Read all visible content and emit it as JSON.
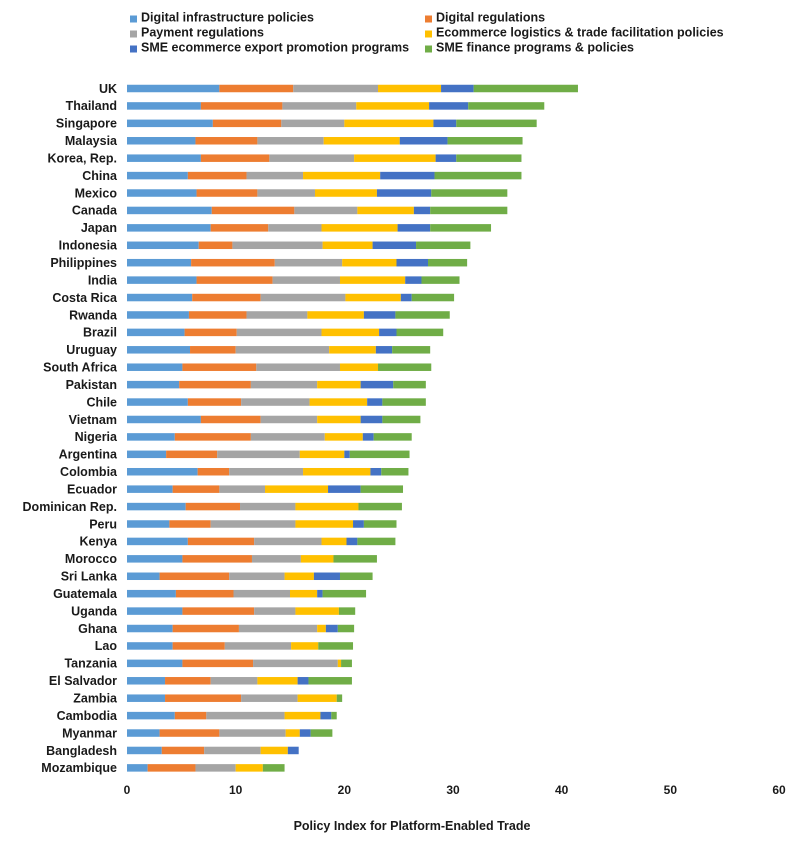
{
  "chart_data": {
    "type": "bar",
    "orientation": "horizontal",
    "stacked": true,
    "title": "",
    "xlabel": "Policy Index for Platform-Enabled Trade",
    "ylabel": "",
    "xlim": [
      0,
      60
    ],
    "xticks": [
      0,
      10,
      20,
      30,
      40,
      50,
      60
    ],
    "grid": false,
    "legend": "top",
    "categories": [
      "UK",
      "Thailand",
      "Singapore",
      "Malaysia",
      "Korea, Rep.",
      "China",
      "Mexico",
      "Canada",
      "Japan",
      "Indonesia",
      "Philippines",
      "India",
      "Costa Rica",
      "Rwanda",
      "Brazil",
      "Uruguay",
      "South Africa",
      "Pakistan",
      "Chile",
      "Vietnam",
      "Nigeria",
      "Argentina",
      "Colombia",
      "Ecuador",
      "Dominican Rep.",
      "Peru",
      "Kenya",
      "Morocco",
      "Sri Lanka",
      "Guatemala",
      "Uganda",
      "Ghana",
      "Lao",
      "Tanzania",
      "El Salvador",
      "Zambia",
      "Cambodia",
      "Myanmar",
      "Bangladesh",
      "Mozambique"
    ],
    "series": [
      {
        "name": "Digital infrastructure policies",
        "color": "#5b9bd5",
        "values": [
          8.5,
          6.8,
          7.9,
          6.3,
          6.8,
          5.6,
          6.4,
          7.8,
          7.7,
          6.6,
          5.9,
          6.4,
          6.0,
          5.7,
          5.3,
          5.8,
          5.1,
          4.8,
          5.6,
          6.8,
          4.4,
          3.6,
          6.5,
          4.2,
          5.4,
          3.9,
          5.6,
          5.1,
          3.0,
          4.5,
          5.1,
          4.2,
          4.2,
          5.1,
          3.5,
          3.5,
          4.4,
          3.0,
          3.2,
          1.9
        ]
      },
      {
        "name": "Digital regulations",
        "color": "#ed7d31",
        "values": [
          6.8,
          7.5,
          6.3,
          5.7,
          6.3,
          5.4,
          5.6,
          7.6,
          5.3,
          3.1,
          7.7,
          7.0,
          6.3,
          5.3,
          4.8,
          4.2,
          6.8,
          6.6,
          4.9,
          5.5,
          7.0,
          4.7,
          2.9,
          4.3,
          5.0,
          3.8,
          6.1,
          6.4,
          6.4,
          5.3,
          6.6,
          6.1,
          4.8,
          6.5,
          4.2,
          7.0,
          2.9,
          5.5,
          3.9,
          4.4
        ]
      },
      {
        "name": "Payment regulations",
        "color": "#a5a5a5",
        "values": [
          7.8,
          6.8,
          5.8,
          6.1,
          7.8,
          5.2,
          5.3,
          5.8,
          4.9,
          8.3,
          6.2,
          6.2,
          7.8,
          5.6,
          7.8,
          8.6,
          7.7,
          6.1,
          6.3,
          5.2,
          6.8,
          7.6,
          6.8,
          4.2,
          5.1,
          7.8,
          6.2,
          4.5,
          5.1,
          5.2,
          3.8,
          7.2,
          6.1,
          7.8,
          4.3,
          5.2,
          7.2,
          6.1,
          5.2,
          3.7
        ]
      },
      {
        "name": "Ecommerce logistics & trade facilitation policies",
        "color": "#ffc000",
        "values": [
          5.8,
          6.7,
          8.2,
          7.0,
          7.5,
          7.1,
          5.7,
          5.2,
          7.0,
          4.6,
          5.0,
          6.0,
          5.1,
          5.2,
          5.3,
          4.3,
          3.5,
          4.0,
          5.3,
          4.0,
          3.5,
          4.1,
          6.2,
          5.8,
          5.8,
          5.3,
          2.3,
          3.0,
          2.7,
          2.5,
          4.0,
          0.8,
          2.5,
          0.3,
          3.7,
          3.6,
          3.3,
          1.3,
          2.5,
          2.5
        ]
      },
      {
        "name": "SME ecommerce export promotion programs",
        "color": "#4472c4",
        "values": [
          3.0,
          3.6,
          2.1,
          4.4,
          1.9,
          5.0,
          5.0,
          1.5,
          3.0,
          4.0,
          2.9,
          1.5,
          1.0,
          2.9,
          1.6,
          1.5,
          0,
          3.0,
          1.4,
          2.0,
          1.0,
          0.5,
          1.0,
          3.0,
          0,
          1.0,
          1.0,
          0,
          2.4,
          0.5,
          0,
          1.1,
          0,
          0,
          1.0,
          0,
          1.0,
          1.0,
          1.0,
          0
        ]
      },
      {
        "name": "SME finance programs & policies",
        "color": "#70ad47",
        "values": [
          9.6,
          7.0,
          7.4,
          6.9,
          6.0,
          8.0,
          7.0,
          7.1,
          5.6,
          5.0,
          3.6,
          3.5,
          3.9,
          5.0,
          4.3,
          3.5,
          4.9,
          3.0,
          4.0,
          3.5,
          3.5,
          5.5,
          2.5,
          3.9,
          4.0,
          3.0,
          3.5,
          4.0,
          3.0,
          4.0,
          1.5,
          1.5,
          3.2,
          1.0,
          4.0,
          0.5,
          0.5,
          2.0,
          0,
          2.0
        ]
      }
    ]
  }
}
